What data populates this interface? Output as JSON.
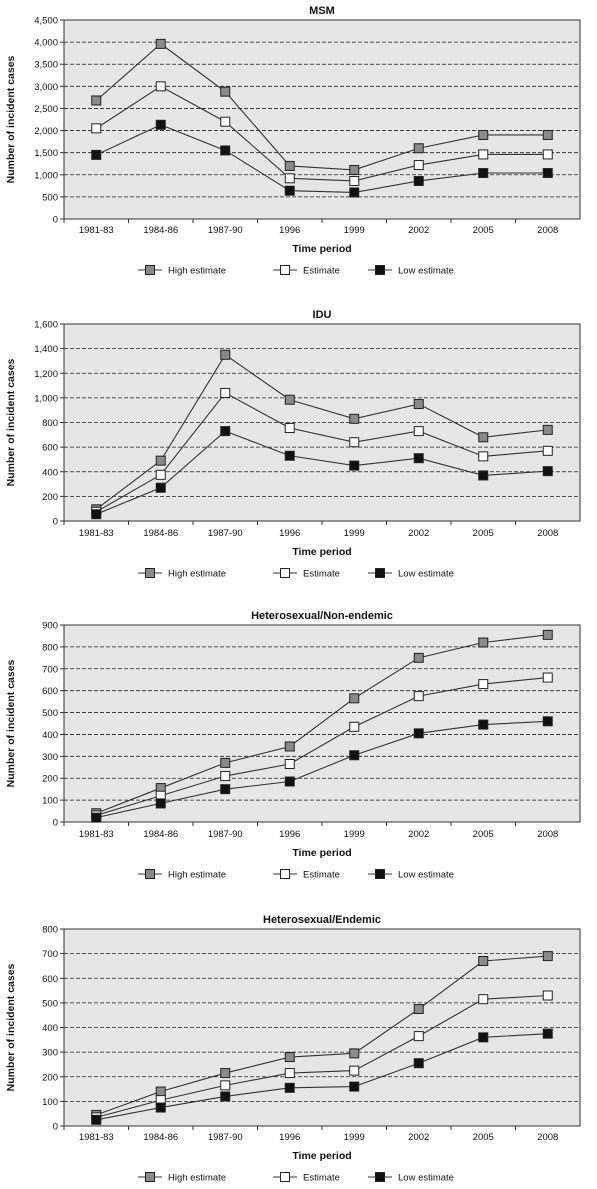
{
  "chart_data": [
    {
      "type": "line",
      "title": "MSM",
      "xlabel": "Time period",
      "ylabel": "Number of incident cases",
      "categories": [
        "1981-83",
        "1984-86",
        "1987-90",
        "1996",
        "1999",
        "2002",
        "2005",
        "2008"
      ],
      "ylim": [
        0,
        4500
      ],
      "yticks": [
        0,
        500,
        1000,
        1500,
        2000,
        2500,
        3000,
        3500,
        4000,
        4500
      ],
      "ytick_labels": [
        "0",
        "500",
        "1,000",
        "1,500",
        "2,000",
        "2,500",
        "3,000",
        "3,500",
        "4,000",
        "4,500"
      ],
      "grid": true,
      "legend": "bottom",
      "series": [
        {
          "name": "High estimate",
          "values": [
            2680,
            3960,
            2880,
            1200,
            1110,
            1600,
            1900,
            1900
          ],
          "color": "#8a8a8a"
        },
        {
          "name": "Estimate",
          "values": [
            2050,
            3000,
            2200,
            920,
            860,
            1220,
            1460,
            1460
          ],
          "color": "#ffffff"
        },
        {
          "name": "Low estimate",
          "values": [
            1450,
            2130,
            1550,
            640,
            600,
            860,
            1040,
            1040
          ],
          "color": "#111111"
        }
      ]
    },
    {
      "type": "line",
      "title": "IDU",
      "xlabel": "Time period",
      "ylabel": "Number of incident cases",
      "categories": [
        "1981-83",
        "1984-86",
        "1987-90",
        "1996",
        "1999",
        "2002",
        "2005",
        "2008"
      ],
      "ylim": [
        0,
        1600
      ],
      "yticks": [
        0,
        200,
        400,
        600,
        800,
        1000,
        1200,
        1400,
        1600
      ],
      "ytick_labels": [
        "0",
        "200",
        "400",
        "600",
        "800",
        "1,000",
        "1,200",
        "1,400",
        "1,600"
      ],
      "grid": true,
      "legend": "bottom",
      "series": [
        {
          "name": "High estimate",
          "values": [
            95,
            490,
            1350,
            985,
            830,
            950,
            680,
            740
          ],
          "color": "#8a8a8a"
        },
        {
          "name": "Estimate",
          "values": [
            75,
            375,
            1040,
            755,
            640,
            730,
            525,
            570
          ],
          "color": "#ffffff"
        },
        {
          "name": "Low estimate",
          "values": [
            55,
            270,
            730,
            530,
            450,
            510,
            370,
            405
          ],
          "color": "#111111"
        }
      ]
    },
    {
      "type": "line",
      "title": "Heterosexual/Non-endemic",
      "xlabel": "Time period",
      "ylabel": "Number of incident cases",
      "categories": [
        "1981-83",
        "1984-86",
        "1987-90",
        "1996",
        "1999",
        "2002",
        "2005",
        "2008"
      ],
      "ylim": [
        0,
        900
      ],
      "yticks": [
        0,
        100,
        200,
        300,
        400,
        500,
        600,
        700,
        800,
        900
      ],
      "ytick_labels": [
        "0",
        "100",
        "200",
        "300",
        "400",
        "500",
        "600",
        "700",
        "800",
        "900"
      ],
      "grid": true,
      "legend": "bottom",
      "series": [
        {
          "name": "High estimate",
          "values": [
            40,
            155,
            270,
            345,
            565,
            750,
            820,
            855
          ],
          "color": "#8a8a8a"
        },
        {
          "name": "Estimate",
          "values": [
            30,
            120,
            210,
            265,
            435,
            575,
            630,
            660
          ],
          "color": "#ffffff"
        },
        {
          "name": "Low estimate",
          "values": [
            20,
            85,
            150,
            185,
            305,
            405,
            445,
            460
          ],
          "color": "#111111"
        }
      ]
    },
    {
      "type": "line",
      "title": "Heterosexual/Endemic",
      "xlabel": "Time period",
      "ylabel": "Number of incident cases",
      "categories": [
        "1981-83",
        "1984-86",
        "1987-90",
        "1996",
        "1999",
        "2002",
        "2005",
        "2008"
      ],
      "ylim": [
        0,
        800
      ],
      "yticks": [
        0,
        100,
        200,
        300,
        400,
        500,
        600,
        700,
        800
      ],
      "ytick_labels": [
        "0",
        "100",
        "200",
        "300",
        "400",
        "500",
        "600",
        "700",
        "800"
      ],
      "grid": true,
      "legend": "bottom",
      "series": [
        {
          "name": "High estimate",
          "values": [
            45,
            140,
            215,
            280,
            295,
            475,
            670,
            690
          ],
          "color": "#8a8a8a"
        },
        {
          "name": "Estimate",
          "values": [
            35,
            105,
            165,
            215,
            225,
            365,
            515,
            530
          ],
          "color": "#ffffff"
        },
        {
          "name": "Low estimate",
          "values": [
            25,
            75,
            120,
            155,
            160,
            255,
            360,
            375
          ],
          "color": "#111111"
        }
      ]
    }
  ]
}
